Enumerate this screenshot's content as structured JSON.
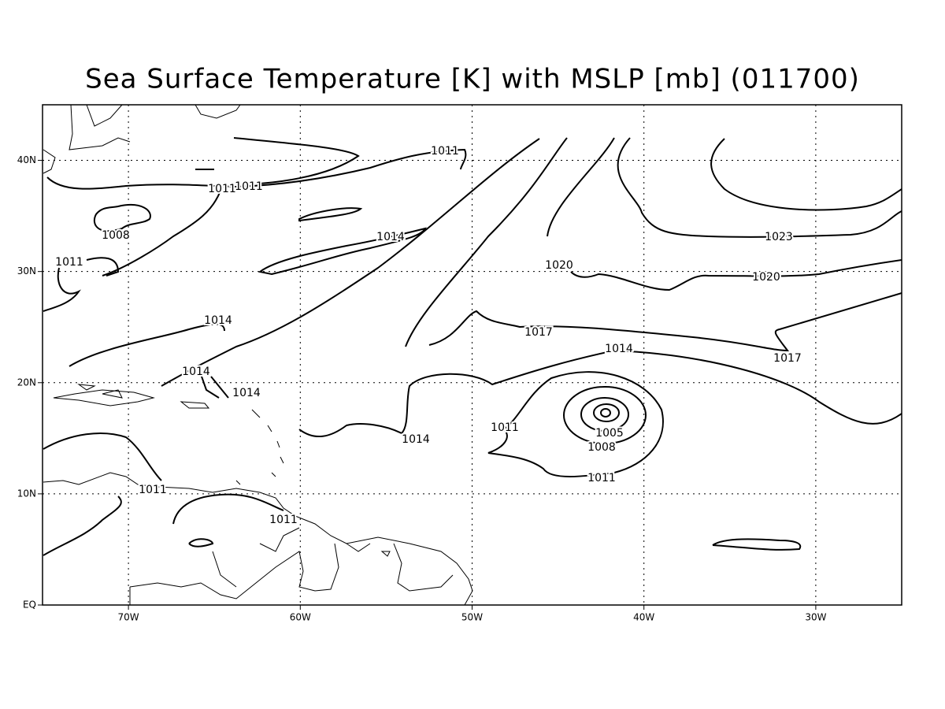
{
  "title": "Sea Surface Temperature [K] with MSLP [mb] (011700)",
  "map": {
    "xlim": [
      -75,
      -25
    ],
    "ylim": [
      0,
      45
    ],
    "xticks": [
      {
        "value": -70,
        "label": "70W"
      },
      {
        "value": -60,
        "label": "60W"
      },
      {
        "value": -50,
        "label": "50W"
      },
      {
        "value": -40,
        "label": "40W"
      },
      {
        "value": -30,
        "label": "30W"
      }
    ],
    "yticks": [
      {
        "value": 0,
        "label": "EQ"
      },
      {
        "value": 10,
        "label": "10N"
      },
      {
        "value": 20,
        "label": "20N"
      },
      {
        "value": 30,
        "label": "30N"
      },
      {
        "value": 40,
        "label": "40N"
      }
    ],
    "grid": true,
    "contour_labels": [
      1011,
      1011,
      1011,
      1008,
      1011,
      1014,
      1020,
      1023,
      1020,
      1017,
      1014,
      1017,
      1014,
      1014,
      1014,
      1014,
      1011,
      1005,
      1008,
      1011,
      1011,
      1011
    ]
  }
}
